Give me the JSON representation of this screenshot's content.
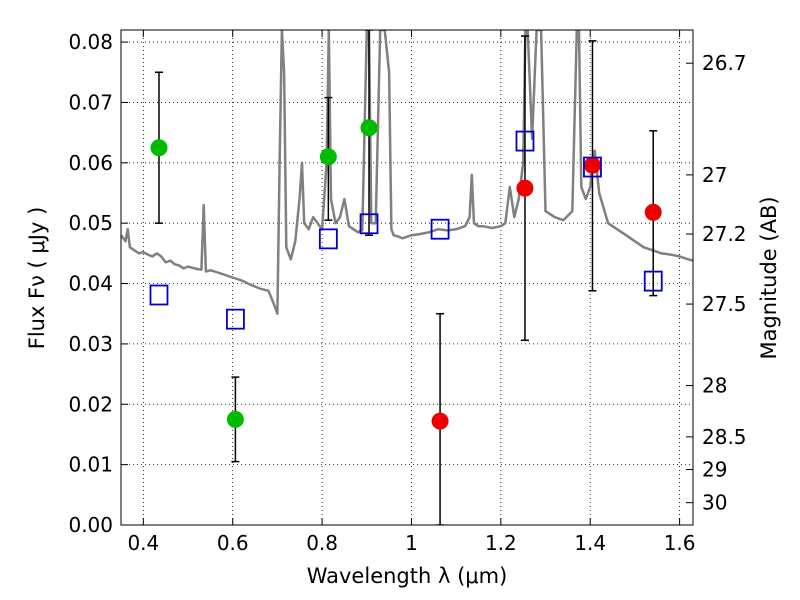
{
  "chart_data": {
    "type": "scatter",
    "title": "",
    "xlabel": "Wavelength  λ (μm)",
    "ylabel": "Flux  Fν  ( μJy )",
    "y2label": "Magnitude (AB)",
    "xlim": [
      0.35,
      1.63
    ],
    "ylim": [
      0.0,
      0.082
    ],
    "grid": true,
    "xticks": [
      0.4,
      0.6,
      0.8,
      1.0,
      1.2,
      1.4,
      1.6
    ],
    "xtick_labels": [
      "0.4",
      "0.6",
      "0.8",
      "1",
      "1.2",
      "1.4",
      "1.6"
    ],
    "yticks": [
      0.0,
      0.01,
      0.02,
      0.03,
      0.04,
      0.05,
      0.06,
      0.07,
      0.08
    ],
    "ytick_labels": [
      "0.00",
      "0.01",
      "0.02",
      "0.03",
      "0.04",
      "0.05",
      "0.06",
      "0.07",
      "0.08"
    ],
    "y2ticks": [
      {
        "label": "26.7",
        "flux": 0.0765
      },
      {
        "label": "27",
        "flux": 0.058
      },
      {
        "label": "27.2",
        "flux": 0.0482
      },
      {
        "label": "27.5",
        "flux": 0.0366
      },
      {
        "label": "28",
        "flux": 0.0231
      },
      {
        "label": "28.5",
        "flux": 0.0146
      },
      {
        "label": "29",
        "flux": 0.0092
      },
      {
        "label": "30",
        "flux": 0.0037
      }
    ],
    "series": [
      {
        "color": "#00bb00",
        "marker": "circle",
        "points": [
          {
            "x": 0.435,
            "y": 0.0625,
            "lo": 0.05,
            "hi": 0.075
          },
          {
            "x": 0.606,
            "y": 0.0175,
            "lo": 0.0105,
            "hi": 0.0245
          },
          {
            "x": 0.814,
            "y": 0.061,
            "lo": 0.0505,
            "hi": 0.0708
          },
          {
            "x": 0.905,
            "y": 0.0658,
            "lo": 0.048,
            "hi": 0.082
          }
        ]
      },
      {
        "color": "#ee0000",
        "marker": "circle",
        "points": [
          {
            "x": 1.064,
            "y": 0.0172,
            "lo": 0.0,
            "hi": 0.035
          },
          {
            "x": 1.254,
            "y": 0.0558,
            "lo": 0.0306,
            "hi": 0.081
          },
          {
            "x": 1.405,
            "y": 0.0596,
            "lo": 0.0388,
            "hi": 0.0802
          },
          {
            "x": 1.541,
            "y": 0.0518,
            "lo": 0.038,
            "hi": 0.0653
          }
        ]
      },
      {
        "color": "#0000cc",
        "marker": "open-square",
        "points": [
          {
            "x": 0.435,
            "y": 0.0381
          },
          {
            "x": 0.606,
            "y": 0.0341
          },
          {
            "x": 0.814,
            "y": 0.0474
          },
          {
            "x": 0.905,
            "y": 0.0499
          },
          {
            "x": 1.064,
            "y": 0.049
          },
          {
            "x": 1.254,
            "y": 0.0636
          },
          {
            "x": 1.405,
            "y": 0.0593
          },
          {
            "x": 1.541,
            "y": 0.0404
          }
        ]
      }
    ],
    "spectrum": {
      "color": "#808080",
      "x": [
        0.35,
        0.36,
        0.365,
        0.37,
        0.38,
        0.39,
        0.4,
        0.41,
        0.42,
        0.43,
        0.44,
        0.45,
        0.46,
        0.47,
        0.48,
        0.49,
        0.5,
        0.51,
        0.52,
        0.53,
        0.535,
        0.54,
        0.55,
        0.56,
        0.58,
        0.6,
        0.62,
        0.64,
        0.66,
        0.68,
        0.69,
        0.7,
        0.705,
        0.71,
        0.715,
        0.72,
        0.73,
        0.74,
        0.75,
        0.755,
        0.76,
        0.77,
        0.78,
        0.79,
        0.8,
        0.81,
        0.815,
        0.82,
        0.83,
        0.84,
        0.85,
        0.86,
        0.87,
        0.88,
        0.89,
        0.9,
        0.905,
        0.91,
        0.92,
        0.93,
        0.94,
        0.95,
        0.955,
        0.96,
        0.97,
        0.98,
        1.0,
        1.02,
        1.04,
        1.06,
        1.08,
        1.1,
        1.12,
        1.13,
        1.135,
        1.14,
        1.15,
        1.16,
        1.18,
        1.2,
        1.21,
        1.22,
        1.23,
        1.24,
        1.25,
        1.255,
        1.26,
        1.27,
        1.28,
        1.29,
        1.3,
        1.32,
        1.34,
        1.36,
        1.37,
        1.375,
        1.38,
        1.39,
        1.4,
        1.41,
        1.42,
        1.44,
        1.46,
        1.48,
        1.5,
        1.52,
        1.54,
        1.56,
        1.58,
        1.6,
        1.62,
        1.63
      ],
      "y": [
        0.048,
        0.047,
        0.049,
        0.046,
        0.0455,
        0.045,
        0.0452,
        0.0448,
        0.0445,
        0.045,
        0.0445,
        0.0435,
        0.0438,
        0.0432,
        0.043,
        0.0425,
        0.0428,
        0.0426,
        0.0424,
        0.0423,
        0.053,
        0.042,
        0.0422,
        0.042,
        0.0415,
        0.041,
        0.0405,
        0.0398,
        0.0392,
        0.0388,
        0.037,
        0.035,
        0.06,
        0.082,
        0.075,
        0.046,
        0.044,
        0.047,
        0.0545,
        0.06,
        0.05,
        0.049,
        0.051,
        0.05,
        0.049,
        0.06,
        0.082,
        0.054,
        0.05,
        0.051,
        0.054,
        0.0495,
        0.049,
        0.0485,
        0.0488,
        0.082,
        0.082,
        0.05,
        0.05,
        0.082,
        0.082,
        0.075,
        0.049,
        0.048,
        0.0478,
        0.0475,
        0.048,
        0.0482,
        0.0485,
        0.049,
        0.0488,
        0.049,
        0.0495,
        0.051,
        0.058,
        0.05,
        0.0495,
        0.0495,
        0.0492,
        0.0495,
        0.05,
        0.056,
        0.051,
        0.054,
        0.06,
        0.082,
        0.082,
        0.064,
        0.082,
        0.082,
        0.052,
        0.051,
        0.0505,
        0.052,
        0.082,
        0.082,
        0.056,
        0.054,
        0.056,
        0.062,
        0.055,
        0.05,
        0.049,
        0.048,
        0.047,
        0.046,
        0.0455,
        0.045,
        0.0448,
        0.0445,
        0.044,
        0.0438
      ]
    }
  }
}
